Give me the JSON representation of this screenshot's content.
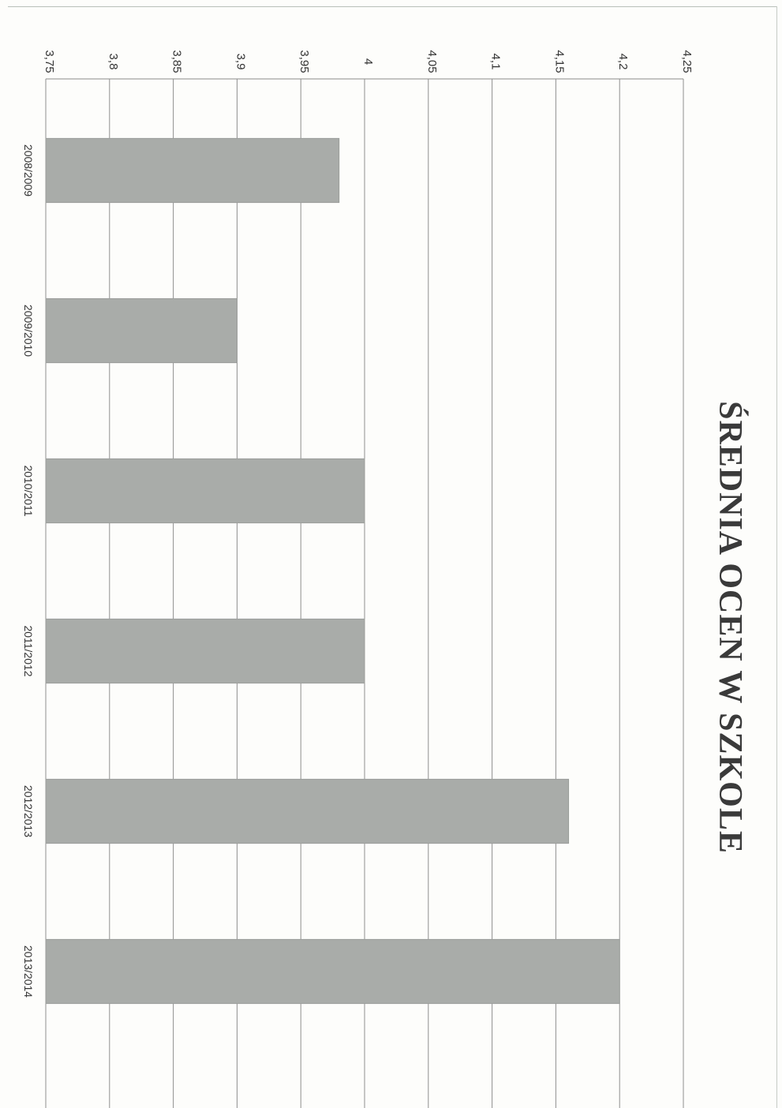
{
  "chart_data": {
    "type": "bar",
    "orientation": "horizontal-rotated",
    "title": "ŚREDNIA OCEN W SZKOLE",
    "categories": [
      "2008/2009",
      "2009/2010",
      "2010/2011",
      "2011/2012",
      "2012/2013",
      "2013/2014"
    ],
    "values": [
      3.98,
      3.9,
      4.0,
      4.0,
      4.16,
      4.2
    ],
    "value_axis_ticks": [
      "3,75",
      "3,8",
      "3,85",
      "3,9",
      "3,95",
      "4",
      "4,05",
      "4,1",
      "4,15",
      "4,2",
      "4,25"
    ],
    "value_axis_range": [
      3.75,
      4.25
    ],
    "grid": true,
    "legend": "none",
    "bar_color": "#a9aca9"
  }
}
